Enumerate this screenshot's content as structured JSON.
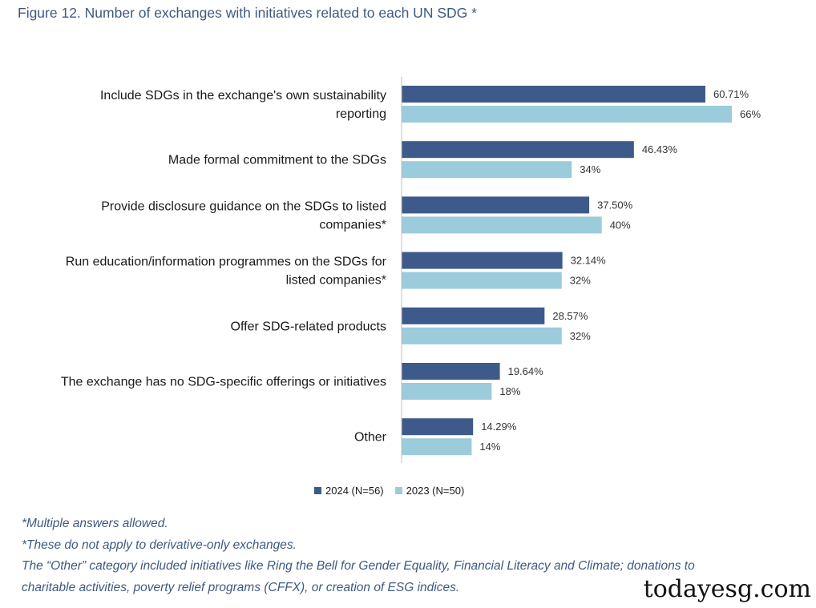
{
  "title": "Figure 12. Number of exchanges with initiatives related to each UN SDG *",
  "chart_data": {
    "type": "bar",
    "orientation": "horizontal",
    "categories": [
      [
        "Include SDGs in the exchange's own sustainability",
        "reporting"
      ],
      [
        "Made formal commitment to the SDGs"
      ],
      [
        "Provide disclosure guidance on the SDGs to listed",
        "companies*"
      ],
      [
        "Run education/information programmes on the SDGs for",
        "listed companies*"
      ],
      [
        "Offer SDG-related products"
      ],
      [
        "The exchange has no SDG-specific offerings or initiatives"
      ],
      [
        "Other"
      ]
    ],
    "series": [
      {
        "name": "2024 (N=56)",
        "color": "#3e5a8a",
        "values": [
          60.71,
          46.43,
          37.5,
          32.14,
          28.57,
          19.64,
          14.29
        ],
        "labels": [
          "60.71%",
          "46.43%",
          "37.50%",
          "32.14%",
          "28.57%",
          "19.64%",
          "14.29%"
        ]
      },
      {
        "name": "2023 (N=50)",
        "color": "#9ccbdc",
        "values": [
          66,
          34,
          40,
          32,
          32,
          18,
          14
        ],
        "labels": [
          "66%",
          "34%",
          "40%",
          "32%",
          "32%",
          "18%",
          "14%"
        ]
      }
    ],
    "xlim": [
      0,
      70
    ],
    "grid": false,
    "legend_position": "bottom"
  },
  "notes": [
    "*Multiple answers allowed.",
    "*These do not apply to derivative-only exchanges.",
    "The “Other” category included initiatives like Ring the Bell for Gender Equality, Financial Literacy and Climate; donations to",
    "charitable activities, poverty relief programs (CFFX), or creation of ESG indices."
  ],
  "watermark": "todayesg.com"
}
